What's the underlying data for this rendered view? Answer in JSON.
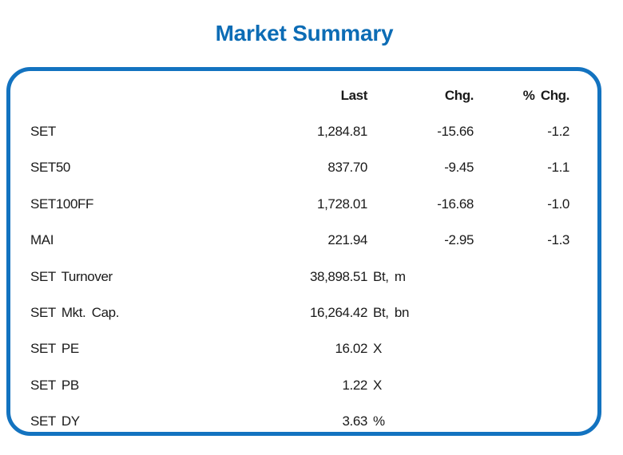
{
  "title": "Market Summary",
  "table": {
    "headers": {
      "last": "Last",
      "chg": "Chg.",
      "pct_chg": "% Chg."
    },
    "rows": [
      {
        "label": "SET",
        "last": "1,284.81",
        "unit": "",
        "chg": "-15.66",
        "pct_chg": "-1.2"
      },
      {
        "label": "SET50",
        "last": "837.70",
        "unit": "",
        "chg": "-9.45",
        "pct_chg": "-1.1"
      },
      {
        "label": "SET100FF",
        "last": "1,728.01",
        "unit": "",
        "chg": "-16.68",
        "pct_chg": "-1.0"
      },
      {
        "label": "MAI",
        "last": "221.94",
        "unit": "",
        "chg": "-2.95",
        "pct_chg": "-1.3"
      },
      {
        "label": "SET Turnover",
        "last": "38,898.51",
        "unit": "Bt, m",
        "chg": "",
        "pct_chg": ""
      },
      {
        "label": "SET Mkt. Cap.",
        "last": "16,264.42",
        "unit": "Bt, bn",
        "chg": "",
        "pct_chg": ""
      },
      {
        "label": "SET PE",
        "last": "16.02",
        "unit": "X",
        "chg": "",
        "pct_chg": ""
      },
      {
        "label": "SET PB",
        "last": "1.22",
        "unit": "X",
        "chg": "",
        "pct_chg": ""
      },
      {
        "label": "SET DY",
        "last": "3.63",
        "unit": "%",
        "chg": "",
        "pct_chg": ""
      }
    ]
  },
  "colors": {
    "accent_border": "#1373c0",
    "title": "#0c6cb5",
    "text": "#1a1a1a"
  },
  "chart_data": {
    "type": "table",
    "title": "Market Summary",
    "columns": [
      "",
      "Last",
      "Chg.",
      "% Chg."
    ],
    "rows": [
      [
        "SET",
        "1,284.81",
        "-15.66",
        "-1.2"
      ],
      [
        "SET50",
        "837.70",
        "-9.45",
        "-1.1"
      ],
      [
        "SET100FF",
        "1,728.01",
        "-16.68",
        "-1.0"
      ],
      [
        "MAI",
        "221.94",
        "-2.95",
        "-1.3"
      ],
      [
        "SET Turnover",
        "38,898.51 Bt, m",
        "",
        ""
      ],
      [
        "SET Mkt. Cap.",
        "16,264.42 Bt, bn",
        "",
        ""
      ],
      [
        "SET PE",
        "16.02 X",
        "",
        ""
      ],
      [
        "SET PB",
        "1.22 X",
        "",
        ""
      ],
      [
        "SET DY",
        "3.63 %",
        "",
        ""
      ]
    ]
  }
}
